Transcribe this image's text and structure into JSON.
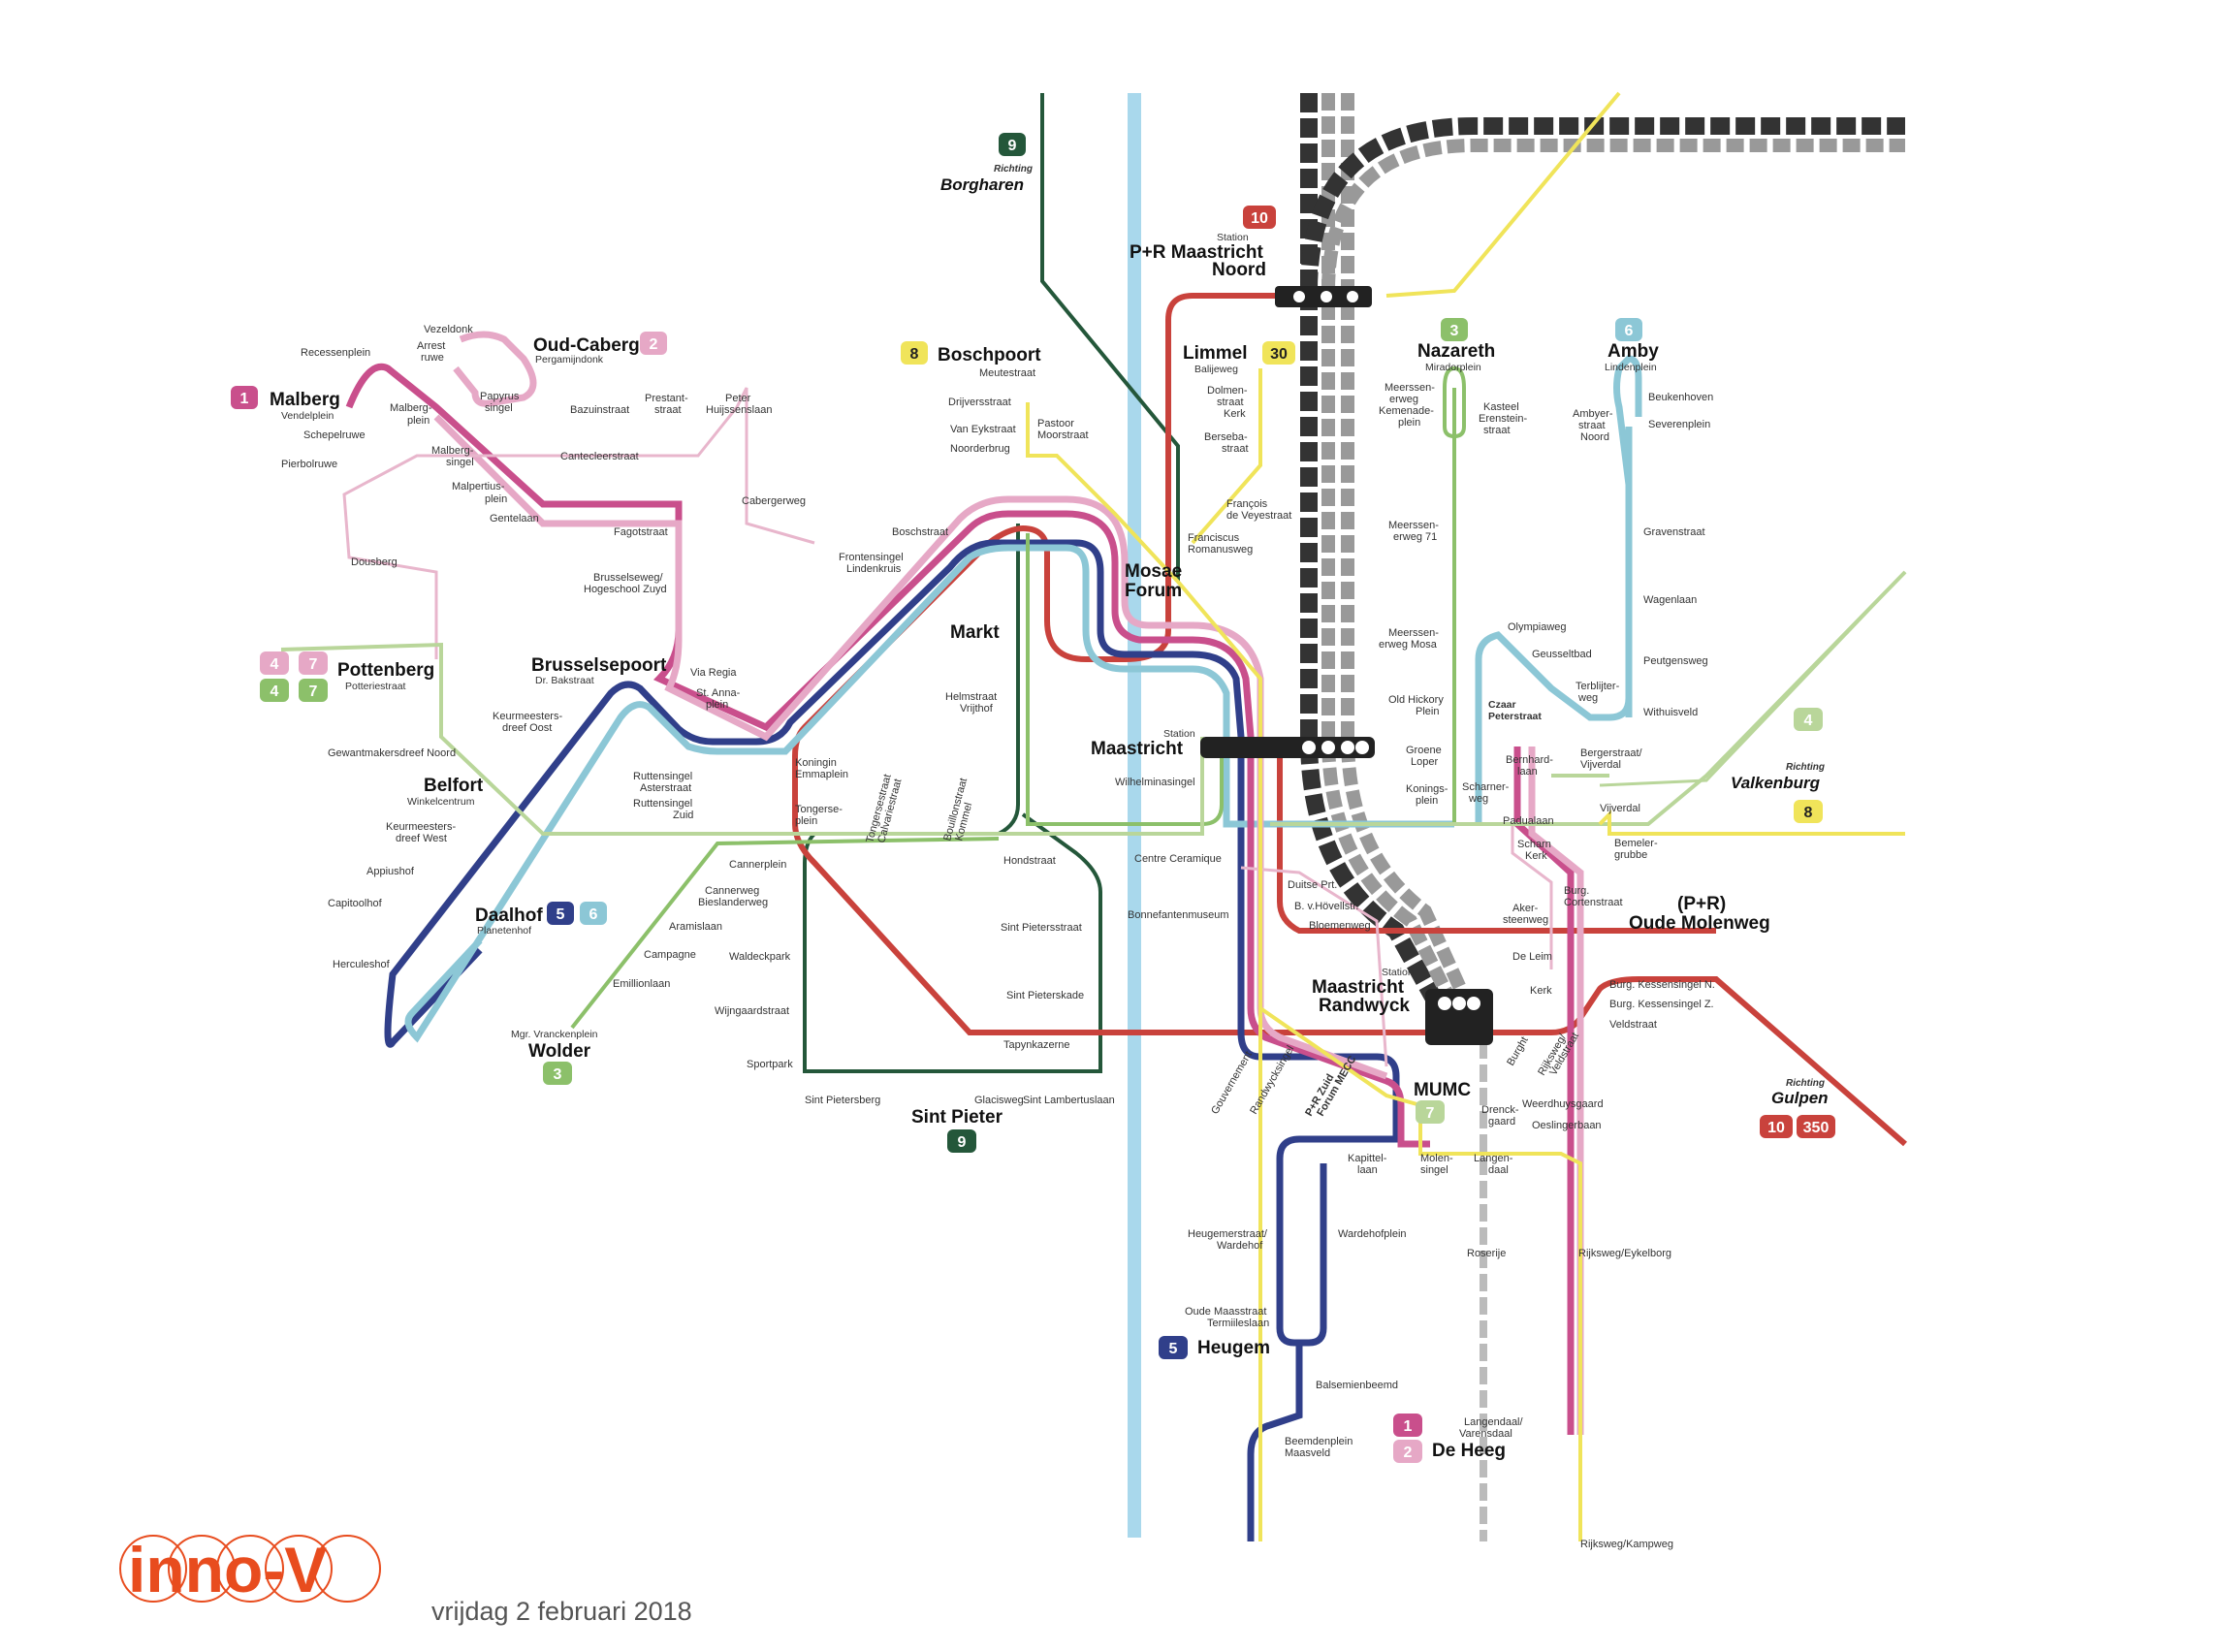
{
  "colors": {
    "line1": "#c94f8c",
    "line2": "#e6a8c6",
    "line3": "#8cc06a",
    "line4": "#b9d69a",
    "line5": "#303f8a",
    "line6": "#8cc7d6",
    "line7": "#e8b6cc",
    "line8": "#f0e45a",
    "line9": "#24573a",
    "line10": "#c9423c",
    "rail": "#3a3a3a",
    "rail_light": "#9a9a9a",
    "river": "#a9d8ec"
  },
  "badges": [
    {
      "id": "b-malberg",
      "number": "1",
      "color": "#c94f8c"
    },
    {
      "id": "b-oudcaberg",
      "number": "2",
      "color": "#e6a8c6"
    },
    {
      "id": "b-boschpoort",
      "number": "8",
      "color": "#f0e45a"
    },
    {
      "id": "b-borgharen",
      "number": "9",
      "color": "#24573a"
    },
    {
      "id": "b-noord",
      "number": "10",
      "color": "#c9423c"
    },
    {
      "id": "b-limmel",
      "number": "30",
      "color": "#f0e45a"
    },
    {
      "id": "b-nazareth",
      "number": "3",
      "color": "#8cc06a"
    },
    {
      "id": "b-amby",
      "number": "6",
      "color": "#8cc7d6"
    },
    {
      "id": "b-pot4a",
      "number": "4",
      "color": "#e6a8c6"
    },
    {
      "id": "b-pot7a",
      "number": "7",
      "color": "#e6a8c6"
    },
    {
      "id": "b-pot4b",
      "number": "4",
      "color": "#8cc06a"
    },
    {
      "id": "b-pot7b",
      "number": "7",
      "color": "#8cc06a"
    },
    {
      "id": "b-daalhof5",
      "number": "5",
      "color": "#303f8a"
    },
    {
      "id": "b-daalhof6",
      "number": "6",
      "color": "#8cc7d6"
    },
    {
      "id": "b-wolder",
      "number": "3",
      "color": "#8cc06a"
    },
    {
      "id": "b-sintpieter",
      "number": "9",
      "color": "#24573a"
    },
    {
      "id": "b-valk4",
      "number": "4",
      "color": "#b9d69a"
    },
    {
      "id": "b-valk8",
      "number": "8",
      "color": "#f0e45a"
    },
    {
      "id": "b-mumc",
      "number": "7",
      "color": "#b9d69a"
    },
    {
      "id": "b-gulpen10",
      "number": "10",
      "color": "#c9423c"
    },
    {
      "id": "b-gulpen350",
      "number": "350",
      "color": "#c9423c"
    },
    {
      "id": "b-heugem",
      "number": "5",
      "color": "#303f8a"
    },
    {
      "id": "b-deheeg1",
      "number": "1",
      "color": "#c94f8c"
    },
    {
      "id": "b-deheeg2",
      "number": "2",
      "color": "#e6a8c6"
    }
  ],
  "major_stops": {
    "malberg": "Malberg",
    "oud_caberg": "Oud-Caberg",
    "boschpoort": "Boschpoort",
    "limmel": "Limmel",
    "nazareth": "Nazareth",
    "amby": "Amby",
    "pottenberg": "Pottenberg",
    "brusselsepoort": "Brusselsepoort",
    "belfort": "Belfort",
    "daalhof": "Daalhof",
    "wolder": "Wolder",
    "markt": "Markt",
    "mosae_forum_1": "Mosae",
    "mosae_forum_2": "Forum",
    "station_maastricht": "Maastricht",
    "sint_pieter": "Sint Pieter",
    "pr_noord_1": "P+R Maastricht",
    "pr_noord_2": "Noord",
    "randwyck_1": "Maastricht",
    "randwyck_2": "Randwyck",
    "oude_molenweg_1": "(P+R)",
    "oude_molenweg_2": "Oude Molenweg",
    "mumc": "MUMC",
    "heugem": "Heugem",
    "de_heeg": "De Heeg",
    "czaar_peterstraat_1": "Czaar",
    "czaar_peterstraat_2": "Peterstraat"
  },
  "subtitles": {
    "malberg": "Vendelplein",
    "oud_caberg": "Pergamijndonk",
    "limmel": "Balijeweg",
    "nazareth": "Miradorplein",
    "amby": "Lindenplein",
    "pottenberg": "Potteriestraat",
    "brusselsepoort": "Dr. Bakstraat",
    "belfort": "Winkelcentrum",
    "daalhof": "Planetenhof",
    "wolder": "Mgr. Vranckenplein",
    "station_small": "Station",
    "pr_station": "Station",
    "randwyck_station": "Station"
  },
  "directions": {
    "richting": "Richting",
    "borgharen": "Borgharen",
    "valkenburg": "Valkenburg",
    "gulpen": "Gulpen"
  },
  "stops": {
    "recessenplein": "Recessenplein",
    "vezeldonk": "Vezeldonk",
    "arrest1": "Arrest",
    "arrest2": "ruwe",
    "malbergplein1": "Malberg-",
    "malbergplein2": "plein",
    "papyrus1": "Papyrus",
    "papyrus2": "singel",
    "schepelruwe": "Schepelruwe",
    "pierbolruwe": "Pierbolruwe",
    "malbergsingel1": "Malberg-",
    "malbergsingel2": "singel",
    "malpertus1": "Malpertius-",
    "malpertus2": "plein",
    "gentelaan": "Gentelaan",
    "bazuinstraat": "Bazuinstraat",
    "prestant1": "Prestant-",
    "prestant2": "straat",
    "peter1": "Peter",
    "peter2": "Huijssenslaan",
    "cantecleer": "Cantecleerstraat",
    "cabergerweg": "Cabergerweg",
    "fagotstraat": "Fagotstraat",
    "dousberg": "Dousberg",
    "brusselseweg1": "Brusselseweg/",
    "brusselseweg2": "Hogeschool Zuyd",
    "viaregia": "Via Regia",
    "stanna1": "St. Anna-",
    "stanna2": "plein",
    "keurmeesters_oost1": "Keurmeesters-",
    "keurmeesters_oost2": "dreef Oost",
    "gewantmakers": "Gewantmakersdreef Noord",
    "keurmeesters_west1": "Keurmeesters-",
    "keurmeesters_west2": "dreef West",
    "appiushof": "Appiushof",
    "capitoolhof": "Capitoolhof",
    "herculeshof": "Herculeshof",
    "ruttensingel_a1": "Ruttensingel",
    "ruttensingel_a2": "Asterstraat",
    "ruttensingel_z1": "Ruttensingel",
    "ruttensingel_z2": "Zuid",
    "cannerplein": "Cannerplein",
    "cannerweg1": "Cannerweg",
    "cannerweg2": "Bieslanderweg",
    "aramislaan": "Aramislaan",
    "campagne": "Campagne",
    "emillionlaan": "Emillionlaan",
    "koningin1": "Koningin",
    "koningin2": "Emmaplein",
    "tongerseplein1": "Tongerse-",
    "tongerseplein2": "plein",
    "tongersestraat1": "Tongersestraat",
    "tongersestraat2": "Calvariestraat",
    "bouillon1": "Bouillonstraat",
    "bouillon2": "Kommel",
    "waldeckpark": "Waldeckpark",
    "wijngaardstraat": "Wijngaardstraat",
    "sportpark": "Sportpark",
    "sintpietersberg": "Sint Pietersberg",
    "glacisweg": "Glacisweg",
    "sintlambertus": "Sint Lambertuslaan",
    "hondstraat": "Hondstraat",
    "sintpietersstraat": "Sint Pietersstraat",
    "sintpieterskade": "Sint Pieterskade",
    "tapynkazerne": "Tapynkazerne",
    "helmstraat1": "Helmstraat",
    "helmstraat2": "Vrijthof",
    "frontensingel1": "Frontensingel",
    "frontensingel2": "Lindenkruis",
    "boschstraat": "Boschstraat",
    "meutestraat": "Meutestraat",
    "drijversstraat": "Drijversstraat",
    "vaneyk": "Van Eykstraat",
    "noorderbrug": "Noorderbrug",
    "pastoor1": "Pastoor",
    "pastoor2": "Moorstraat",
    "dolmen1": "Dolmen-",
    "dolmen2": "straat",
    "kerk1": "Kerk",
    "berseba1": "Berseba-",
    "berseba2": "straat",
    "francois1": "François",
    "francois2": "de Veyestraat",
    "franciscus1": "Franciscus",
    "franciscus2": "Romanusweg",
    "wilhelmina": "Wilhelminasingel",
    "centreceramique": "Centre Ceramique",
    "bonnefanten": "Bonnefantenmuseum",
    "duitseprt": "Duitse Prt.",
    "bvhovell": "B. v.Hövellstr.",
    "bloemenweg": "Bloemenweg",
    "gouvernement": "Gouvernement",
    "randwycksingel": "Randwycksingel",
    "przuid1": "P+R Zuid",
    "przuid2": "Forum MECC",
    "meerssenerweg_k1": "Meerssen-",
    "meerssenerweg_k2": "erweg",
    "meerssenerweg_k3": "Kemenade-",
    "meerssenerweg_k4": "plein",
    "kasteel1": "Kasteel",
    "kasteel2": "Erenstein-",
    "kasteel3": "straat",
    "meerssenerweg71_1": "Meerssen-",
    "meerssenerweg71_2": "erweg 71",
    "meerssenermosa1": "Meerssen-",
    "meerssenermosa2": "erweg Mosa",
    "oldhickory1": "Old Hickory",
    "oldhickory2": "Plein",
    "groene1": "Groene",
    "groene2": "Loper",
    "konings1": "Konings-",
    "konings2": "plein",
    "scharner1": "Scharner-",
    "scharner2": "weg",
    "olympiaweg": "Olympiaweg",
    "geusselt": "Geusseltbad",
    "terblijt1": "Terblijter-",
    "terblijt2": "weg",
    "bernhard1": "Bernhard-",
    "bernhard2": "laan",
    "paduaal": "Padualaan",
    "scharn1": "Scharn",
    "scharn2": "Kerk",
    "beukenhoven": "Beukenhoven",
    "severen": "Severenplein",
    "ambyer1": "Ambyer-",
    "ambyer2": "straat",
    "ambyer3": "Noord",
    "gravenstraat": "Gravenstraat",
    "wagenlaan": "Wagenlaan",
    "peutgensweg": "Peutgensweg",
    "withuisveld": "Withuisveld",
    "bergerstraat1": "Bergerstraat/",
    "bergerstraat2": "Vijverdal",
    "vijverdal": "Vijverdal",
    "bemeler1": "Bemeler-",
    "bemeler2": "grubbe",
    "burgcort1": "Burg.",
    "burgcort2": "Cortenstraat",
    "aker1": "Aker-",
    "aker2": "steenweg",
    "deleim": "De Leim",
    "kerk2": "Kerk",
    "kessN": "Burg. Kessensingel N.",
    "kessZ": "Burg. Kessensingel Z.",
    "veldstraat": "Veldstraat",
    "burght": "Burght",
    "rijksweg1": "Rijksweg/",
    "rijksweg2": "Veldstraat",
    "weerdhuys": "Weerdhuysgaard",
    "oeslinger": "Oeslingerbaan",
    "drenck1": "Drenck-",
    "drenck2": "gaard",
    "kapittel1": "Kapittel-",
    "kapittel2": "laan",
    "molensingel1": "Molen-",
    "molensingel2": "singel",
    "langendaal1": "Langen-",
    "langendaal2": "daal",
    "heugemer1": "Heugemerstraat/",
    "heugemer2": "Wardehof",
    "wardehof": "Wardehofplein",
    "oudemaas1": "Oude Maasstraat",
    "oudemaas2": "Termiileslaan",
    "balsemien": "Balsemienbeemd",
    "beemden1": "Beemdenplein",
    "beemden2": "Maasveld",
    "roserije": "Roserije",
    "rijkswegeykel": "Rijksweg/Eykelborg",
    "langendaalvar1": "Langendaal/",
    "langendaalvar2": "Varensdaal",
    "rijkswegkamp": "Rijksweg/Kampweg"
  },
  "footer": {
    "logo_text": "inno-V",
    "date": "vrijdag 2 februari 2018"
  }
}
